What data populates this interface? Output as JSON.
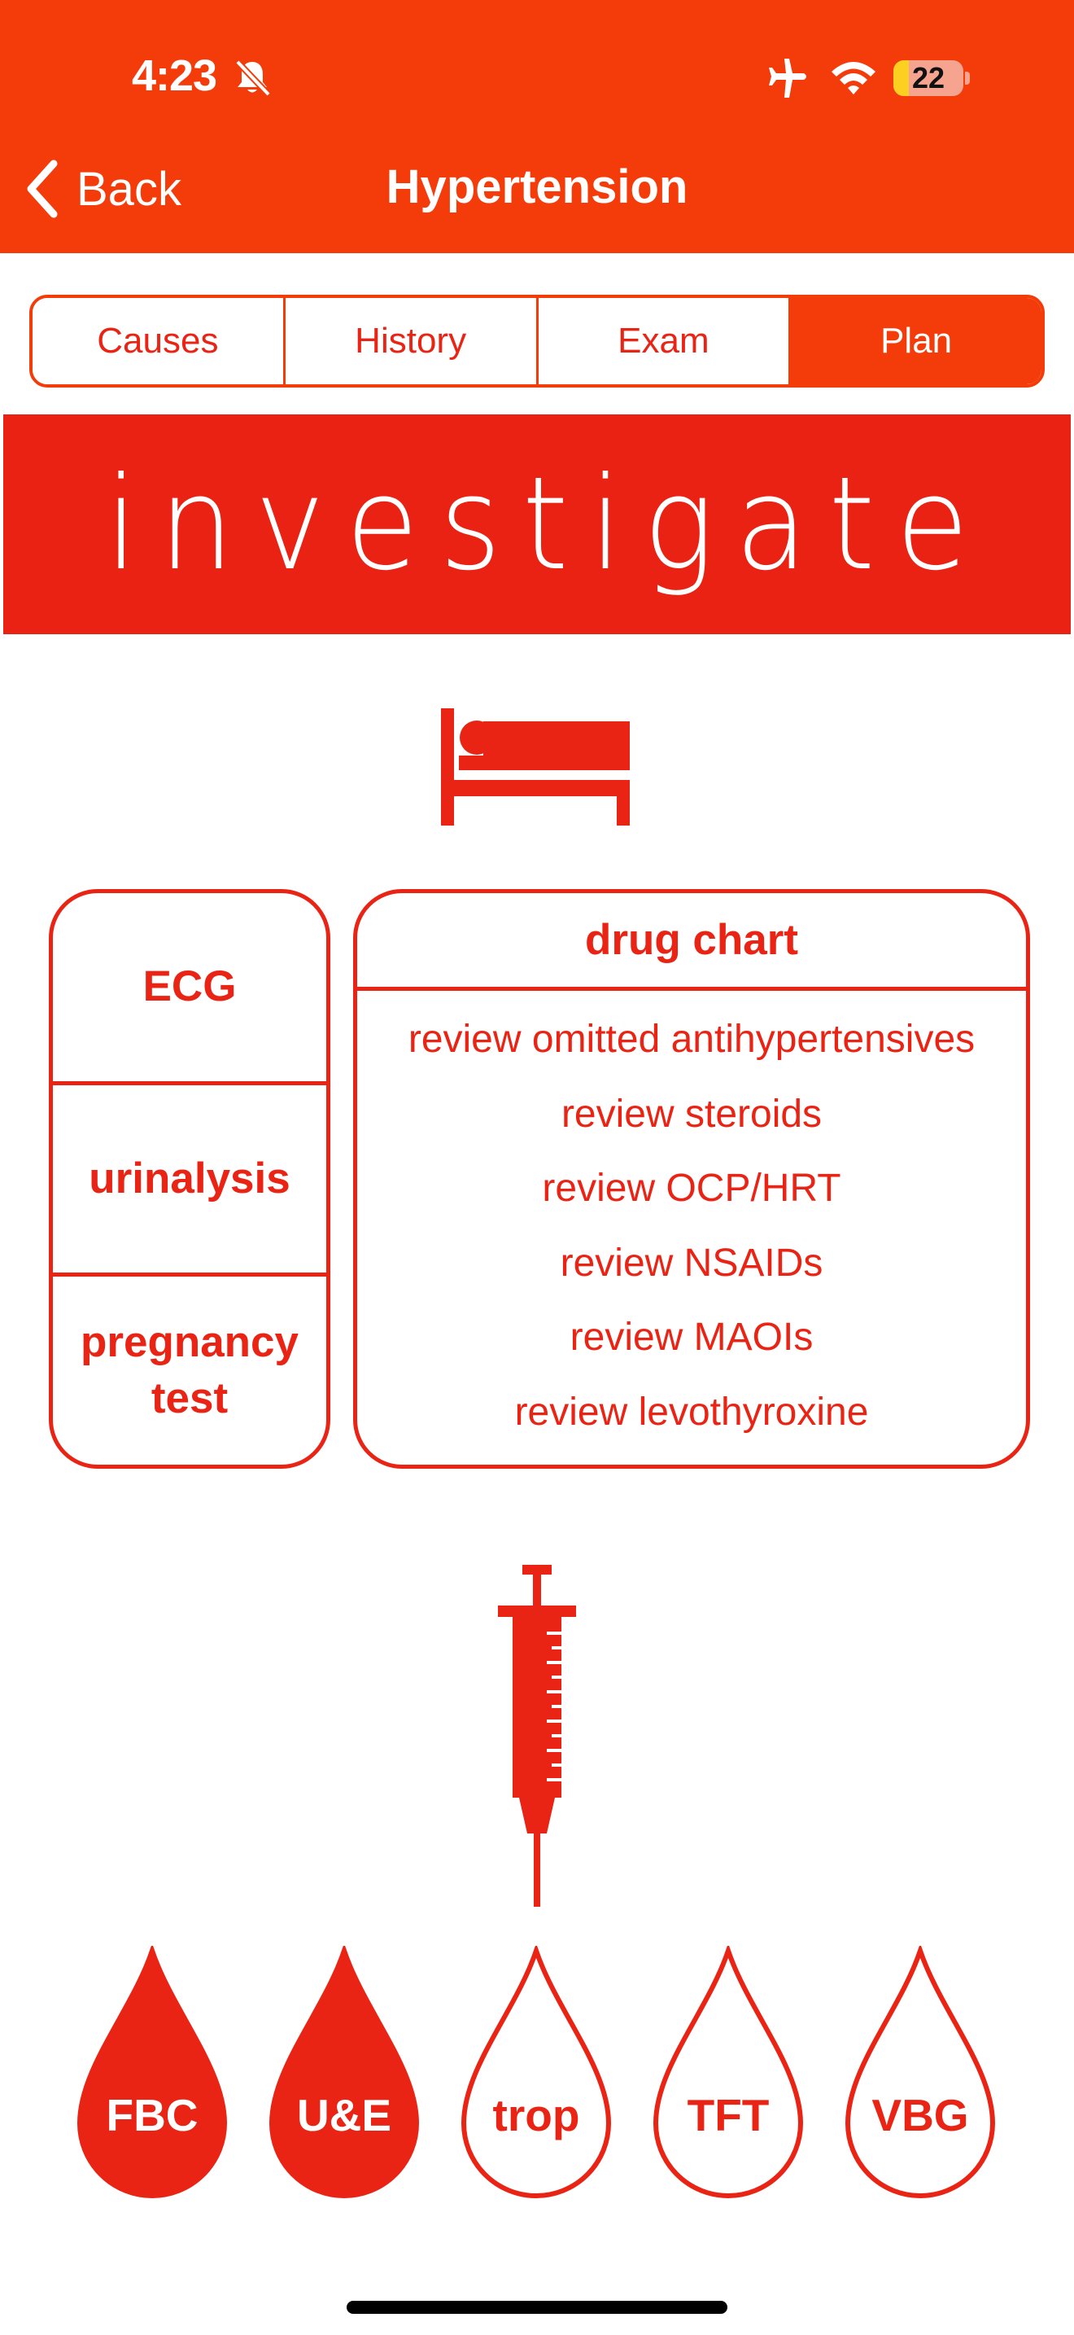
{
  "status_bar": {
    "time": "4:23",
    "battery_level": "22",
    "battery_fraction": 0.22
  },
  "nav": {
    "back_label": "Back",
    "title": "Hypertension"
  },
  "tabs": [
    {
      "label": "Causes",
      "selected": false
    },
    {
      "label": "History",
      "selected": false
    },
    {
      "label": "Exam",
      "selected": false
    },
    {
      "label": "Plan",
      "selected": true
    }
  ],
  "banner": {
    "text": "investigate"
  },
  "bedside_tests": [
    "ECG",
    "urinalysis",
    "pregnancy test"
  ],
  "drug_chart": {
    "title": "drug chart",
    "items": [
      "review omitted antihypertensives",
      "review steroids",
      "review OCP/HRT",
      "review NSAIDs",
      "review MAOIs",
      "review levothyroxine"
    ]
  },
  "blood_tests": [
    {
      "label": "FBC",
      "filled": true
    },
    {
      "label": "U&E",
      "filled": true
    },
    {
      "label": "trop",
      "filled": false
    },
    {
      "label": "TFT",
      "filled": false
    },
    {
      "label": "VBG",
      "filled": false
    }
  ],
  "icons": {
    "bell": "bell-slash-icon",
    "airplane": "airplane-icon",
    "wifi": "wifi-icon",
    "back": "chevron-left-icon",
    "bed": "patient-bed-icon",
    "syringe": "syringe-icon",
    "drop": "blood-drop-icon"
  },
  "colors": {
    "header": "#f43c0b",
    "accent": "#ea2415",
    "white": "#ffffff"
  }
}
